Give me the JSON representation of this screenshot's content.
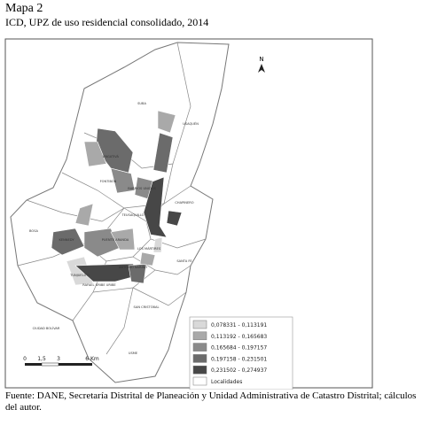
{
  "header": {
    "title": "Mapa 2",
    "subtitle": "ICD, UPZ de uso residencial consolidado, 2014"
  },
  "map": {
    "north": "N",
    "localidades": [
      "SUBA",
      "USAQUÉN",
      "ENGATIVÁ",
      "FONTIBÓN",
      "BARRIOS UNIDOS",
      "TEUSAQUILLO",
      "CHAPINERO",
      "BOSA",
      "KENNEDY",
      "PUENTE ARANDA",
      "LOS MÁRTIRES",
      "SANTA FE",
      "ANTONIO NARIÑO",
      "TUNJUELITO",
      "RAFAEL URIBE URIBE",
      "SAN CRISTÓBAL",
      "CIUDAD BOLÍVAR",
      "USME"
    ],
    "scale": [
      "0",
      "1,5",
      "3",
      "6 Km"
    ],
    "legend": [
      {
        "label": "0,078331 - 0,113191",
        "color": "#d9d9d9"
      },
      {
        "label": "0,113192 - 0,165683",
        "color": "#a9a9a9"
      },
      {
        "label": "0,165684 - 0,197157",
        "color": "#8a8a8a"
      },
      {
        "label": "0,197158 - 0,231501",
        "color": "#6b6b6b"
      },
      {
        "label": "0,231502 - 0,274937",
        "color": "#474747"
      },
      {
        "label": "Localidades",
        "color": "#ffffff"
      }
    ]
  },
  "footer": {
    "source": "Fuente: DANE, Secretaría Distrital de Planeación y Unidad Administrativa de Catastro Distrital;  cálculos del autor."
  }
}
